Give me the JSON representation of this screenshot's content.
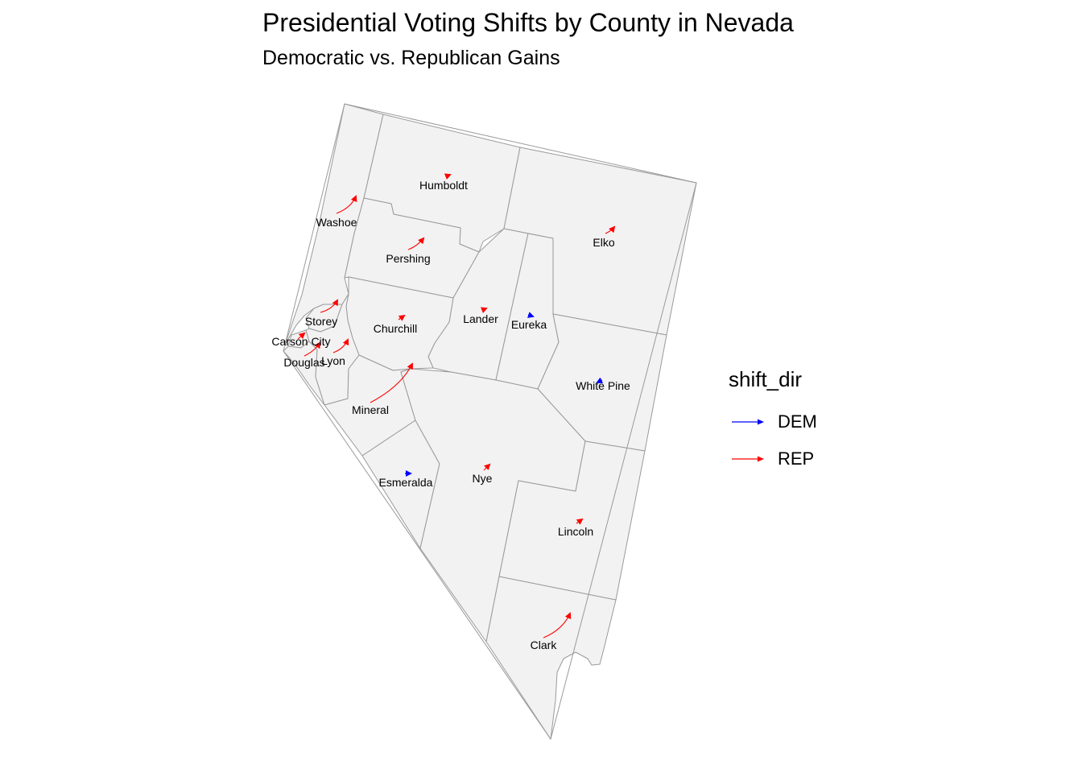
{
  "title": "Presidential Voting Shifts by County in Nevada",
  "subtitle": "Democratic vs. Republican Gains",
  "legend": {
    "title": "shift_dir",
    "items": [
      {
        "label": "DEM",
        "color": "#0000ff"
      },
      {
        "label": "REP",
        "color": "#ff0000"
      }
    ]
  },
  "counties": [
    {
      "name": "Washoe",
      "shift": "REP"
    },
    {
      "name": "Humboldt",
      "shift": "REP"
    },
    {
      "name": "Elko",
      "shift": "REP"
    },
    {
      "name": "Pershing",
      "shift": "REP"
    },
    {
      "name": "Storey",
      "shift": "REP"
    },
    {
      "name": "Churchill",
      "shift": "REP"
    },
    {
      "name": "Lander",
      "shift": "REP"
    },
    {
      "name": "Eureka",
      "shift": "DEM"
    },
    {
      "name": "Carson City",
      "shift": "REP"
    },
    {
      "name": "Douglas",
      "shift": "REP"
    },
    {
      "name": "Lyon",
      "shift": "REP"
    },
    {
      "name": "White Pine",
      "shift": "DEM"
    },
    {
      "name": "Mineral",
      "shift": "REP"
    },
    {
      "name": "Esmeralda",
      "shift": "DEM"
    },
    {
      "name": "Nye",
      "shift": "REP"
    },
    {
      "name": "Lincoln",
      "shift": "REP"
    },
    {
      "name": "Clark",
      "shift": "REP"
    }
  ]
}
